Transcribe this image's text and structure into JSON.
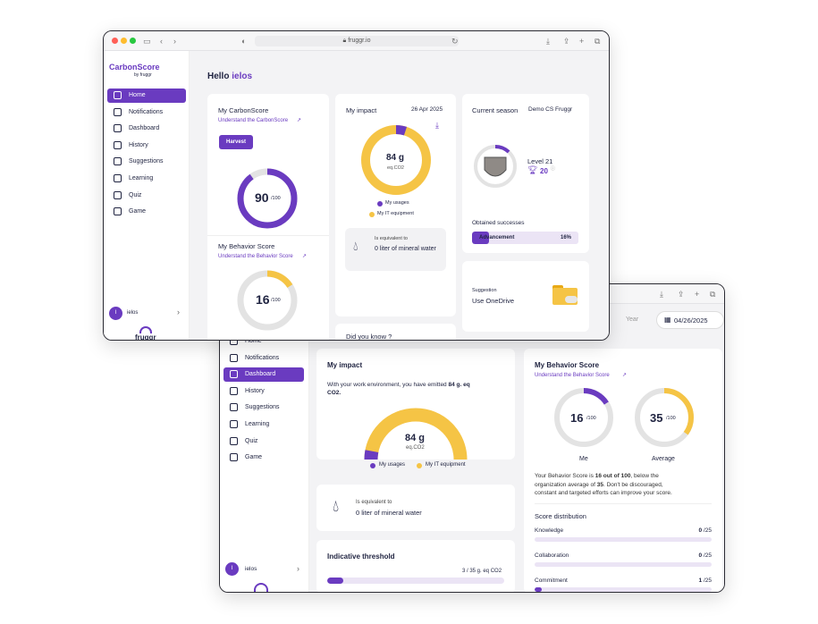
{
  "colors": {
    "purple": "#6a3bc0",
    "yellow": "#f5c445",
    "grey": "#e3e3e3",
    "dark": "#1f2340"
  },
  "w1": {
    "url": "fruggr.io",
    "brand": "CarbonScore",
    "brand_sub": "by fruggr",
    "nav": [
      {
        "label": "Home",
        "icon": "home-icon"
      },
      {
        "label": "Notifications",
        "icon": "bell-icon"
      },
      {
        "label": "Dashboard",
        "icon": "dashboard-icon"
      },
      {
        "label": "History",
        "icon": "history-icon"
      },
      {
        "label": "Suggestions",
        "icon": "book-icon"
      },
      {
        "label": "Learning",
        "icon": "graduation-cap-icon"
      },
      {
        "label": "Quiz",
        "icon": "quiz-icon"
      },
      {
        "label": "Game",
        "icon": "gamepad-icon"
      }
    ],
    "user": {
      "initial": "I",
      "name": "ielos"
    },
    "footer_logo": "fruggr",
    "greeting_prefix": "Hello",
    "greeting_name": "ielos",
    "carbonscore": {
      "title": "My CarbonScore",
      "link": "Understand the CarbonScore",
      "badge": "Harvest",
      "score": "90",
      "max": "/100",
      "fraction": 0.9
    },
    "behavior": {
      "title": "My Behavior Score",
      "link": "Understand the Behavior Score",
      "score": "16",
      "max": "/100",
      "fraction": 0.16
    },
    "impact": {
      "title": "My impact",
      "date": "26 Apr 2025",
      "value": "84 g",
      "unit": "eq.CO2",
      "usage_fraction": 0.05,
      "legend": [
        "My usages",
        "My IT equipment"
      ],
      "equiv_label": "Is equivalent to",
      "equiv_value": "0 liter of mineral water"
    },
    "did_you_know": "Did you know ?",
    "season": {
      "title": "Current season",
      "name": "Demo CS Fruggr",
      "level": "Level 21",
      "trophies": "20",
      "successes_title": "Obtained successes",
      "bar_label": "Advancement",
      "bar_value": "16%",
      "fraction": 0.16
    },
    "suggestion": {
      "label": "Suggestion",
      "text": "Use OneDrive"
    }
  },
  "w2": {
    "toolbar_partial": [
      "m",
      "Year"
    ],
    "date": "04/26/2025",
    "nav": [
      {
        "label": "Home",
        "icon": "home-icon"
      },
      {
        "label": "Notifications",
        "icon": "bell-icon"
      },
      {
        "label": "Dashboard",
        "icon": "dashboard-icon"
      },
      {
        "label": "History",
        "icon": "history-icon"
      },
      {
        "label": "Suggestions",
        "icon": "book-icon"
      },
      {
        "label": "Learning",
        "icon": "graduation-cap-icon"
      },
      {
        "label": "Quiz",
        "icon": "quiz-icon"
      },
      {
        "label": "Game",
        "icon": "gamepad-icon"
      }
    ],
    "user": {
      "initial": "I",
      "name": "ielos"
    },
    "impact": {
      "title": "My impact",
      "text_prefix": "With your work environment, you have emitted",
      "text_value": "84 g. eq",
      "text_suffix": "CO2.",
      "value": "84 g",
      "unit": "eq.CO2",
      "legend": [
        "My usages",
        "My IT equipment"
      ]
    },
    "equiv": {
      "label": "Is equivalent to",
      "value": "0 liter of mineral water"
    },
    "threshold": {
      "title": "Indicative threshold",
      "value": "3 / 35 g. eq CO2",
      "fraction": 0.09
    },
    "behavior": {
      "title": "My Behavior Score",
      "link": "Understand the Behavior Score",
      "me": {
        "score": "16",
        "max": "/100",
        "label": "Me",
        "fraction": 0.16
      },
      "avg": {
        "score": "35",
        "max": "/100",
        "label": "Average",
        "fraction": 0.35
      },
      "desc_a": "Your Behavior Score is",
      "desc_b": "16 out of 100",
      "desc_c": ", below the",
      "desc_d": "organization average of",
      "desc_e": "35",
      "desc_f": ". Don't be discouraged,",
      "desc_g": "constant and targeted efforts can improve your score.",
      "distribution_title": "Score distribution",
      "distribution": [
        {
          "label": "Knowledge",
          "value": "0",
          "max": "/25",
          "fraction": 0
        },
        {
          "label": "Collaboration",
          "value": "0",
          "max": "/25",
          "fraction": 0
        },
        {
          "label": "Commitment",
          "value": "1",
          "max": "/25",
          "fraction": 0.04
        }
      ]
    }
  }
}
